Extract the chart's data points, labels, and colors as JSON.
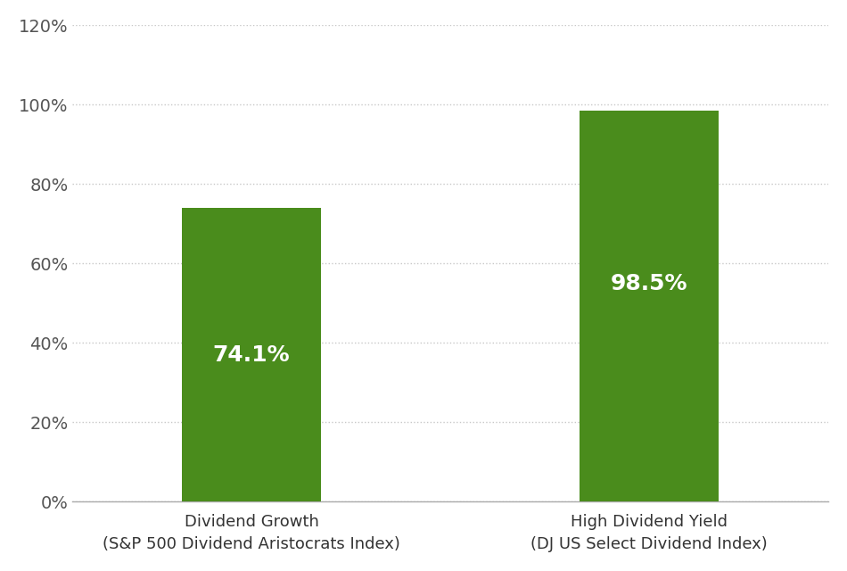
{
  "categories": [
    "Dividend Growth\n(S&P 500 Dividend Aristocrats Index)",
    "High Dividend Yield\n(DJ US Select Dividend Index)"
  ],
  "values": [
    74.1,
    98.5
  ],
  "bar_color": "#4a8c1c",
  "bar_labels": [
    "74.1%",
    "98.5%"
  ],
  "label_color": "#ffffff",
  "label_fontsize": 18,
  "ylim": [
    0,
    120
  ],
  "yticks": [
    0,
    20,
    40,
    60,
    80,
    100,
    120
  ],
  "ytick_labels": [
    "0%",
    "20%",
    "40%",
    "60%",
    "80%",
    "100%",
    "120%"
  ],
  "tick_fontsize": 14,
  "xlabel_fontsize": 13,
  "background_color": "#ffffff",
  "grid_color": "#c8c8c8",
  "bar_width": 0.35,
  "bar_positions": [
    1,
    2
  ]
}
